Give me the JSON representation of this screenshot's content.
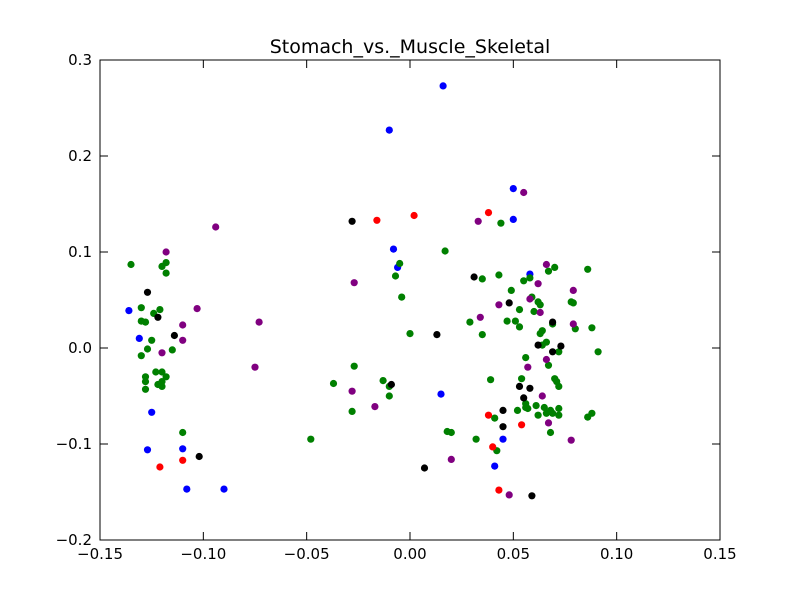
{
  "chart_data": {
    "type": "scatter",
    "title": "Stomach_vs._Muscle_Skeletal",
    "xlabel": "",
    "ylabel": "",
    "xlim": [
      -0.15,
      0.15
    ],
    "ylim": [
      -0.2,
      0.3
    ],
    "x_ticks": [
      "−0.15",
      "−0.10",
      "−0.05",
      "0.00",
      "0.05",
      "0.10",
      "0.15"
    ],
    "y_ticks": [
      "−0.2",
      "−0.1",
      "0.0",
      "0.1",
      "0.2",
      "0.3"
    ],
    "grid": false,
    "colors": {
      "blue": "#0000ff",
      "green": "#008000",
      "purple": "#800080",
      "black": "#000000",
      "red": "#ff0000"
    },
    "series": [
      {
        "color": "#0000ff",
        "points": [
          [
            0.016,
            0.273
          ],
          [
            -0.01,
            0.227
          ],
          [
            0.05,
            0.166
          ],
          [
            0.05,
            0.134
          ],
          [
            -0.008,
            0.103
          ],
          [
            -0.006,
            0.084
          ],
          [
            0.058,
            0.077
          ],
          [
            -0.136,
            0.039
          ],
          [
            -0.131,
            0.01
          ],
          [
            0.015,
            -0.048
          ],
          [
            -0.125,
            -0.067
          ],
          [
            0.045,
            -0.095
          ],
          [
            -0.127,
            -0.106
          ],
          [
            -0.11,
            -0.105
          ],
          [
            0.041,
            -0.123
          ],
          [
            -0.108,
            -0.147
          ],
          [
            -0.09,
            -0.147
          ]
        ]
      },
      {
        "color": "#008000",
        "points": [
          [
            -0.135,
            0.087
          ],
          [
            -0.12,
            0.085
          ],
          [
            -0.118,
            0.089
          ],
          [
            -0.118,
            0.078
          ],
          [
            -0.13,
            0.042
          ],
          [
            -0.124,
            0.036
          ],
          [
            -0.121,
            0.04
          ],
          [
            -0.128,
            0.027
          ],
          [
            -0.13,
            0.028
          ],
          [
            -0.125,
            0.008
          ],
          [
            -0.127,
            -0.001
          ],
          [
            -0.13,
            -0.008
          ],
          [
            -0.115,
            -0.002
          ],
          [
            -0.123,
            -0.025
          ],
          [
            -0.12,
            -0.025
          ],
          [
            -0.128,
            -0.03
          ],
          [
            -0.128,
            -0.035
          ],
          [
            -0.12,
            -0.035
          ],
          [
            -0.118,
            -0.03
          ],
          [
            -0.122,
            -0.038
          ],
          [
            -0.12,
            -0.04
          ],
          [
            -0.128,
            -0.043
          ],
          [
            -0.11,
            -0.088
          ],
          [
            -0.048,
            -0.095
          ],
          [
            -0.037,
            -0.037
          ],
          [
            -0.027,
            -0.019
          ],
          [
            -0.028,
            -0.066
          ],
          [
            -0.013,
            -0.034
          ],
          [
            -0.01,
            -0.04
          ],
          [
            -0.01,
            -0.05
          ],
          [
            -0.007,
            0.075
          ],
          [
            -0.005,
            0.088
          ],
          [
            -0.004,
            0.053
          ],
          [
            0.0,
            0.015
          ],
          [
            0.017,
            0.101
          ],
          [
            0.018,
            -0.087
          ],
          [
            0.02,
            -0.088
          ],
          [
            0.029,
            0.027
          ],
          [
            0.032,
            -0.095
          ],
          [
            0.035,
            0.072
          ],
          [
            0.035,
            0.014
          ],
          [
            0.039,
            -0.033
          ],
          [
            0.041,
            -0.073
          ],
          [
            0.042,
            -0.107
          ],
          [
            0.043,
            0.076
          ],
          [
            0.044,
            0.13
          ],
          [
            0.047,
            0.028
          ],
          [
            0.049,
            0.06
          ],
          [
            0.051,
            0.028
          ],
          [
            0.052,
            -0.065
          ],
          [
            0.053,
            0.04
          ],
          [
            0.053,
            0.022
          ],
          [
            0.054,
            -0.032
          ],
          [
            0.055,
            0.07
          ],
          [
            0.056,
            -0.01
          ],
          [
            0.056,
            -0.058
          ],
          [
            0.056,
            -0.062
          ],
          [
            0.057,
            -0.063
          ],
          [
            0.058,
            0.073
          ],
          [
            0.059,
            0.053
          ],
          [
            0.06,
            0.038
          ],
          [
            0.061,
            -0.06
          ],
          [
            0.062,
            0.048
          ],
          [
            0.062,
            -0.07
          ],
          [
            0.063,
            0.045
          ],
          [
            0.063,
            0.015
          ],
          [
            0.064,
            0.018
          ],
          [
            0.064,
            0.003
          ],
          [
            0.065,
            -0.062
          ],
          [
            0.066,
            0.006
          ],
          [
            0.066,
            -0.068
          ],
          [
            0.067,
            0.08
          ],
          [
            0.067,
            -0.018
          ],
          [
            0.068,
            -0.065
          ],
          [
            0.068,
            -0.088
          ],
          [
            0.069,
            0.025
          ],
          [
            0.069,
            -0.068
          ],
          [
            0.07,
            0.084
          ],
          [
            0.07,
            -0.032
          ],
          [
            0.071,
            -0.035
          ],
          [
            0.072,
            -0.004
          ],
          [
            0.072,
            -0.063
          ],
          [
            0.072,
            -0.04
          ],
          [
            0.072,
            -0.07
          ],
          [
            0.078,
            0.048
          ],
          [
            0.079,
            0.047
          ],
          [
            0.08,
            0.02
          ],
          [
            0.086,
            0.082
          ],
          [
            0.086,
            -0.072
          ],
          [
            0.088,
            0.021
          ],
          [
            0.088,
            -0.068
          ],
          [
            0.091,
            -0.004
          ]
        ]
      },
      {
        "color": "#800080",
        "points": [
          [
            -0.094,
            0.126
          ],
          [
            -0.118,
            0.1
          ],
          [
            -0.103,
            0.041
          ],
          [
            -0.073,
            0.027
          ],
          [
            -0.11,
            0.024
          ],
          [
            -0.11,
            0.008
          ],
          [
            -0.12,
            -0.005
          ],
          [
            -0.075,
            -0.02
          ],
          [
            -0.027,
            0.068
          ],
          [
            -0.028,
            -0.045
          ],
          [
            -0.017,
            -0.061
          ],
          [
            0.033,
            0.132
          ],
          [
            0.034,
            0.032
          ],
          [
            0.043,
            0.045
          ],
          [
            0.055,
            0.162
          ],
          [
            0.057,
            -0.02
          ],
          [
            0.058,
            0.051
          ],
          [
            0.062,
            0.067
          ],
          [
            0.063,
            0.037
          ],
          [
            0.064,
            -0.05
          ],
          [
            0.066,
            0.087
          ],
          [
            0.066,
            -0.012
          ],
          [
            0.067,
            -0.078
          ],
          [
            0.079,
            0.06
          ],
          [
            0.079,
            0.025
          ],
          [
            0.078,
            -0.096
          ],
          [
            0.02,
            -0.116
          ],
          [
            0.048,
            -0.153
          ]
        ]
      },
      {
        "color": "#000000",
        "points": [
          [
            -0.127,
            0.058
          ],
          [
            -0.122,
            0.032
          ],
          [
            -0.114,
            0.013
          ],
          [
            -0.102,
            -0.113
          ],
          [
            -0.028,
            0.132
          ],
          [
            -0.009,
            -0.038
          ],
          [
            0.007,
            -0.125
          ],
          [
            0.013,
            0.014
          ],
          [
            0.031,
            0.074
          ],
          [
            0.048,
            0.047
          ],
          [
            0.045,
            -0.065
          ],
          [
            0.045,
            -0.082
          ],
          [
            0.053,
            -0.04
          ],
          [
            0.055,
            -0.052
          ],
          [
            0.058,
            -0.042
          ],
          [
            0.062,
            0.003
          ],
          [
            0.069,
            0.027
          ],
          [
            0.069,
            -0.004
          ],
          [
            0.073,
            0.002
          ],
          [
            0.059,
            -0.154
          ]
        ]
      },
      {
        "color": "#ff0000",
        "points": [
          [
            -0.016,
            0.133
          ],
          [
            0.002,
            0.138
          ],
          [
            0.038,
            0.141
          ],
          [
            0.038,
            -0.07
          ],
          [
            0.04,
            -0.103
          ],
          [
            0.054,
            -0.08
          ],
          [
            -0.121,
            -0.124
          ],
          [
            -0.11,
            -0.117
          ],
          [
            0.043,
            -0.148
          ]
        ]
      }
    ]
  }
}
